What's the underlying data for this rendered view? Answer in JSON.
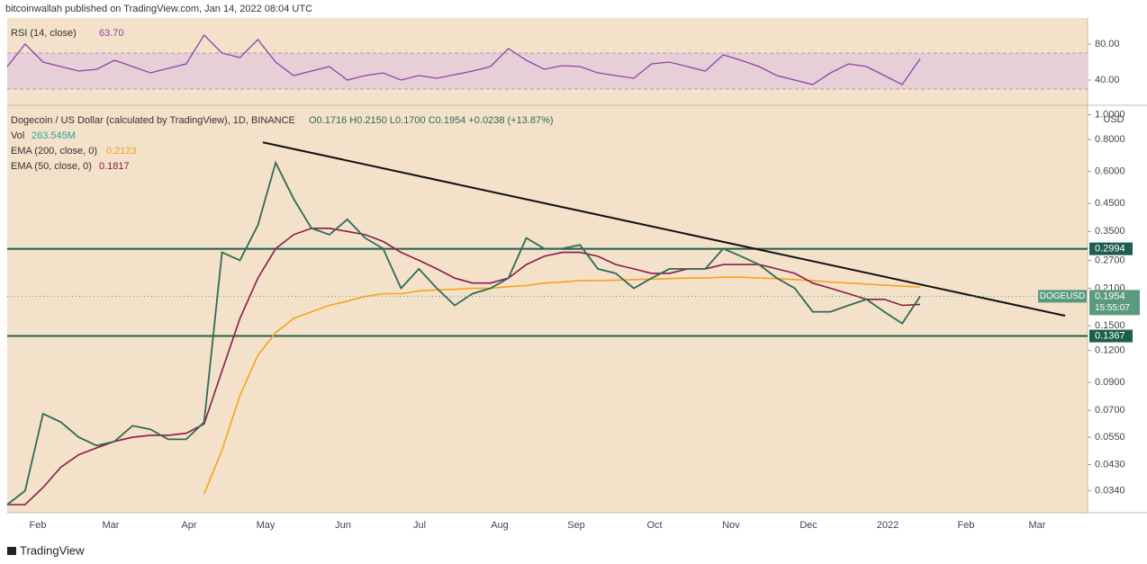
{
  "header": "bitcoinwallah published on TradingView.com, Jan 14, 2022 08:04 UTC",
  "footer": "TradingView",
  "chart_data": [
    {
      "type": "line",
      "title": "RSI (14, close)",
      "last_value": {
        "value": 63.7,
        "label": "63.70"
      },
      "color": "#8e44ad",
      "band": [
        30,
        70
      ],
      "band_color": "#e6cfd6",
      "values": [
        55,
        80,
        60,
        55,
        50,
        52,
        62,
        55,
        48,
        53,
        58,
        90,
        70,
        65,
        85,
        60,
        45,
        50,
        55,
        40,
        45,
        48,
        40,
        45,
        42,
        46,
        50,
        55,
        75,
        62,
        52,
        56,
        55,
        48,
        45,
        42,
        58,
        60,
        55,
        50,
        68,
        62,
        55,
        45,
        40,
        35,
        48,
        58,
        55,
        45,
        35,
        63.7
      ],
      "ylim": [
        15,
        107
      ],
      "yticks": [
        {
          "value": 80,
          "label": "80.00"
        },
        {
          "value": 40,
          "label": "40.00"
        }
      ]
    },
    {
      "type": "line",
      "title": "Dogecoin / US Dollar (calculated by TradingView), 1D, BINANCE",
      "ohlc": "O0.1716 H0.2150 L0.1700 C0.1954 +0.0238 (+13.87%)",
      "volume_label": "Vol",
      "volume_value": "263.545M",
      "log_scale": true,
      "y_unit": "USD",
      "countdown": "15:55:07",
      "series": [
        {
          "name": "DOGEUSD",
          "color": "#2f6b56",
          "values": [
            0.03,
            0.034,
            0.068,
            0.063,
            0.055,
            0.051,
            0.053,
            0.061,
            0.059,
            0.054,
            0.054,
            0.063,
            0.29,
            0.27,
            0.37,
            0.65,
            0.47,
            0.36,
            0.34,
            0.39,
            0.33,
            0.3,
            0.21,
            0.25,
            0.21,
            0.18,
            0.2,
            0.21,
            0.23,
            0.33,
            0.3,
            0.3,
            0.31,
            0.25,
            0.24,
            0.21,
            0.23,
            0.25,
            0.25,
            0.25,
            0.3,
            0.28,
            0.26,
            0.23,
            0.21,
            0.17,
            0.17,
            0.18,
            0.19,
            0.17,
            0.153,
            0.1954
          ]
        },
        {
          "name": "EMA (200, close, 0)",
          "legend_value": 0.2123,
          "color": "#f7a21b",
          "values": [
            null,
            null,
            null,
            null,
            null,
            null,
            null,
            null,
            null,
            null,
            null,
            0.033,
            0.049,
            0.08,
            0.115,
            0.141,
            0.16,
            0.17,
            0.18,
            0.187,
            0.195,
            0.2,
            0.2,
            0.205,
            0.207,
            0.208,
            0.21,
            0.21,
            0.213,
            0.215,
            0.22,
            0.222,
            0.225,
            0.225,
            0.226,
            0.227,
            0.228,
            0.229,
            0.23,
            0.23,
            0.232,
            0.232,
            0.23,
            0.229,
            0.227,
            0.225,
            0.222,
            0.22,
            0.218,
            0.216,
            0.214,
            0.2123
          ]
        },
        {
          "name": "EMA (50, close, 0)",
          "legend_value": 0.1817,
          "color": "#8b1a4a",
          "values": [
            0.03,
            0.03,
            0.035,
            0.042,
            0.047,
            0.05,
            0.053,
            0.055,
            0.056,
            0.056,
            0.057,
            0.062,
            0.1,
            0.16,
            0.23,
            0.3,
            0.34,
            0.36,
            0.36,
            0.35,
            0.34,
            0.32,
            0.29,
            0.27,
            0.25,
            0.23,
            0.22,
            0.22,
            0.23,
            0.26,
            0.28,
            0.29,
            0.29,
            0.28,
            0.26,
            0.25,
            0.24,
            0.24,
            0.25,
            0.25,
            0.26,
            0.26,
            0.26,
            0.25,
            0.24,
            0.22,
            0.21,
            0.2,
            0.19,
            0.19,
            0.18,
            0.1817
          ]
        }
      ],
      "levels": [
        0.2994,
        0.1367
      ],
      "level_color": "#1e5e4e",
      "trendline": [
        0.78,
        0.164
      ],
      "ylim": [
        0.0279,
        1.08
      ],
      "yticks": [
        {
          "value": 1,
          "label": "1.0000"
        },
        {
          "value": 0.8,
          "label": "0.8000"
        },
        {
          "value": 0.6,
          "label": "0.6000"
        },
        {
          "value": 0.45,
          "label": "0.4500"
        },
        {
          "value": 0.35,
          "label": "0.3500"
        },
        {
          "value": 0.27,
          "label": "0.2700"
        },
        {
          "value": 0.21,
          "label": "0.2100"
        },
        {
          "value": 0.15,
          "label": "0.1500"
        },
        {
          "value": 0.12,
          "label": "0.1200"
        },
        {
          "value": 0.09,
          "label": "0.0900"
        },
        {
          "value": 0.07,
          "label": "0.0700"
        },
        {
          "value": 0.055,
          "label": "0.0550"
        },
        {
          "value": 0.043,
          "label": "0.0430"
        },
        {
          "value": 0.034,
          "label": "0.0340"
        }
      ],
      "x_labels": [
        "Feb",
        "Mar",
        "Apr",
        "May",
        "Jun",
        "Jul",
        "Aug",
        "Sep",
        "Oct",
        "Nov",
        "Dec",
        "2022",
        "Feb",
        "Mar"
      ]
    }
  ]
}
